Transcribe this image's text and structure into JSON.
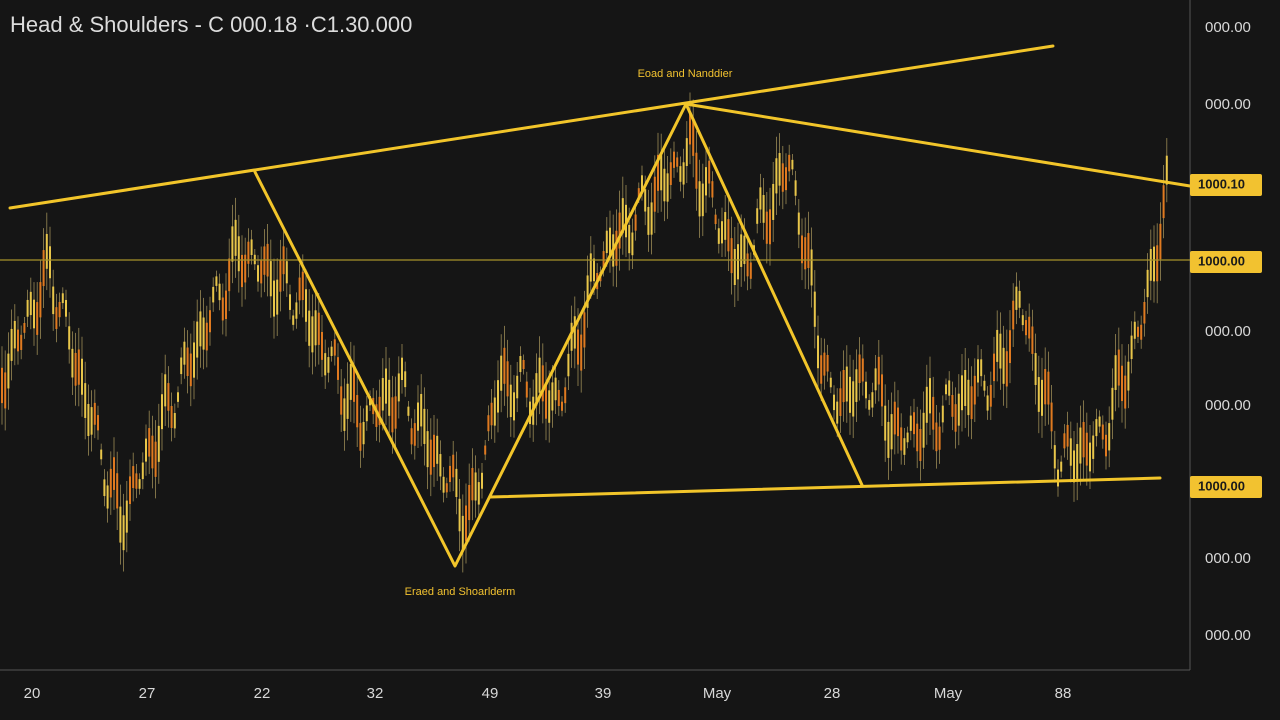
{
  "header": {
    "title": "Head & Shoulders - C 000.18  ·C1.30.000"
  },
  "annotations": {
    "top": "Eoad and Nanddier",
    "bottom": "Eraed and Shoarlderm"
  },
  "price_axis": {
    "labels": [
      "000.00",
      "000.00",
      "000.00",
      "000.00",
      "000.00",
      "000.00"
    ],
    "tags": [
      "1000.10",
      "1000.00",
      "1000.00"
    ]
  },
  "time_axis": {
    "labels": [
      "20",
      "27",
      "22",
      "32",
      "49",
      "39",
      "May",
      "28",
      "May",
      "88"
    ]
  }
}
